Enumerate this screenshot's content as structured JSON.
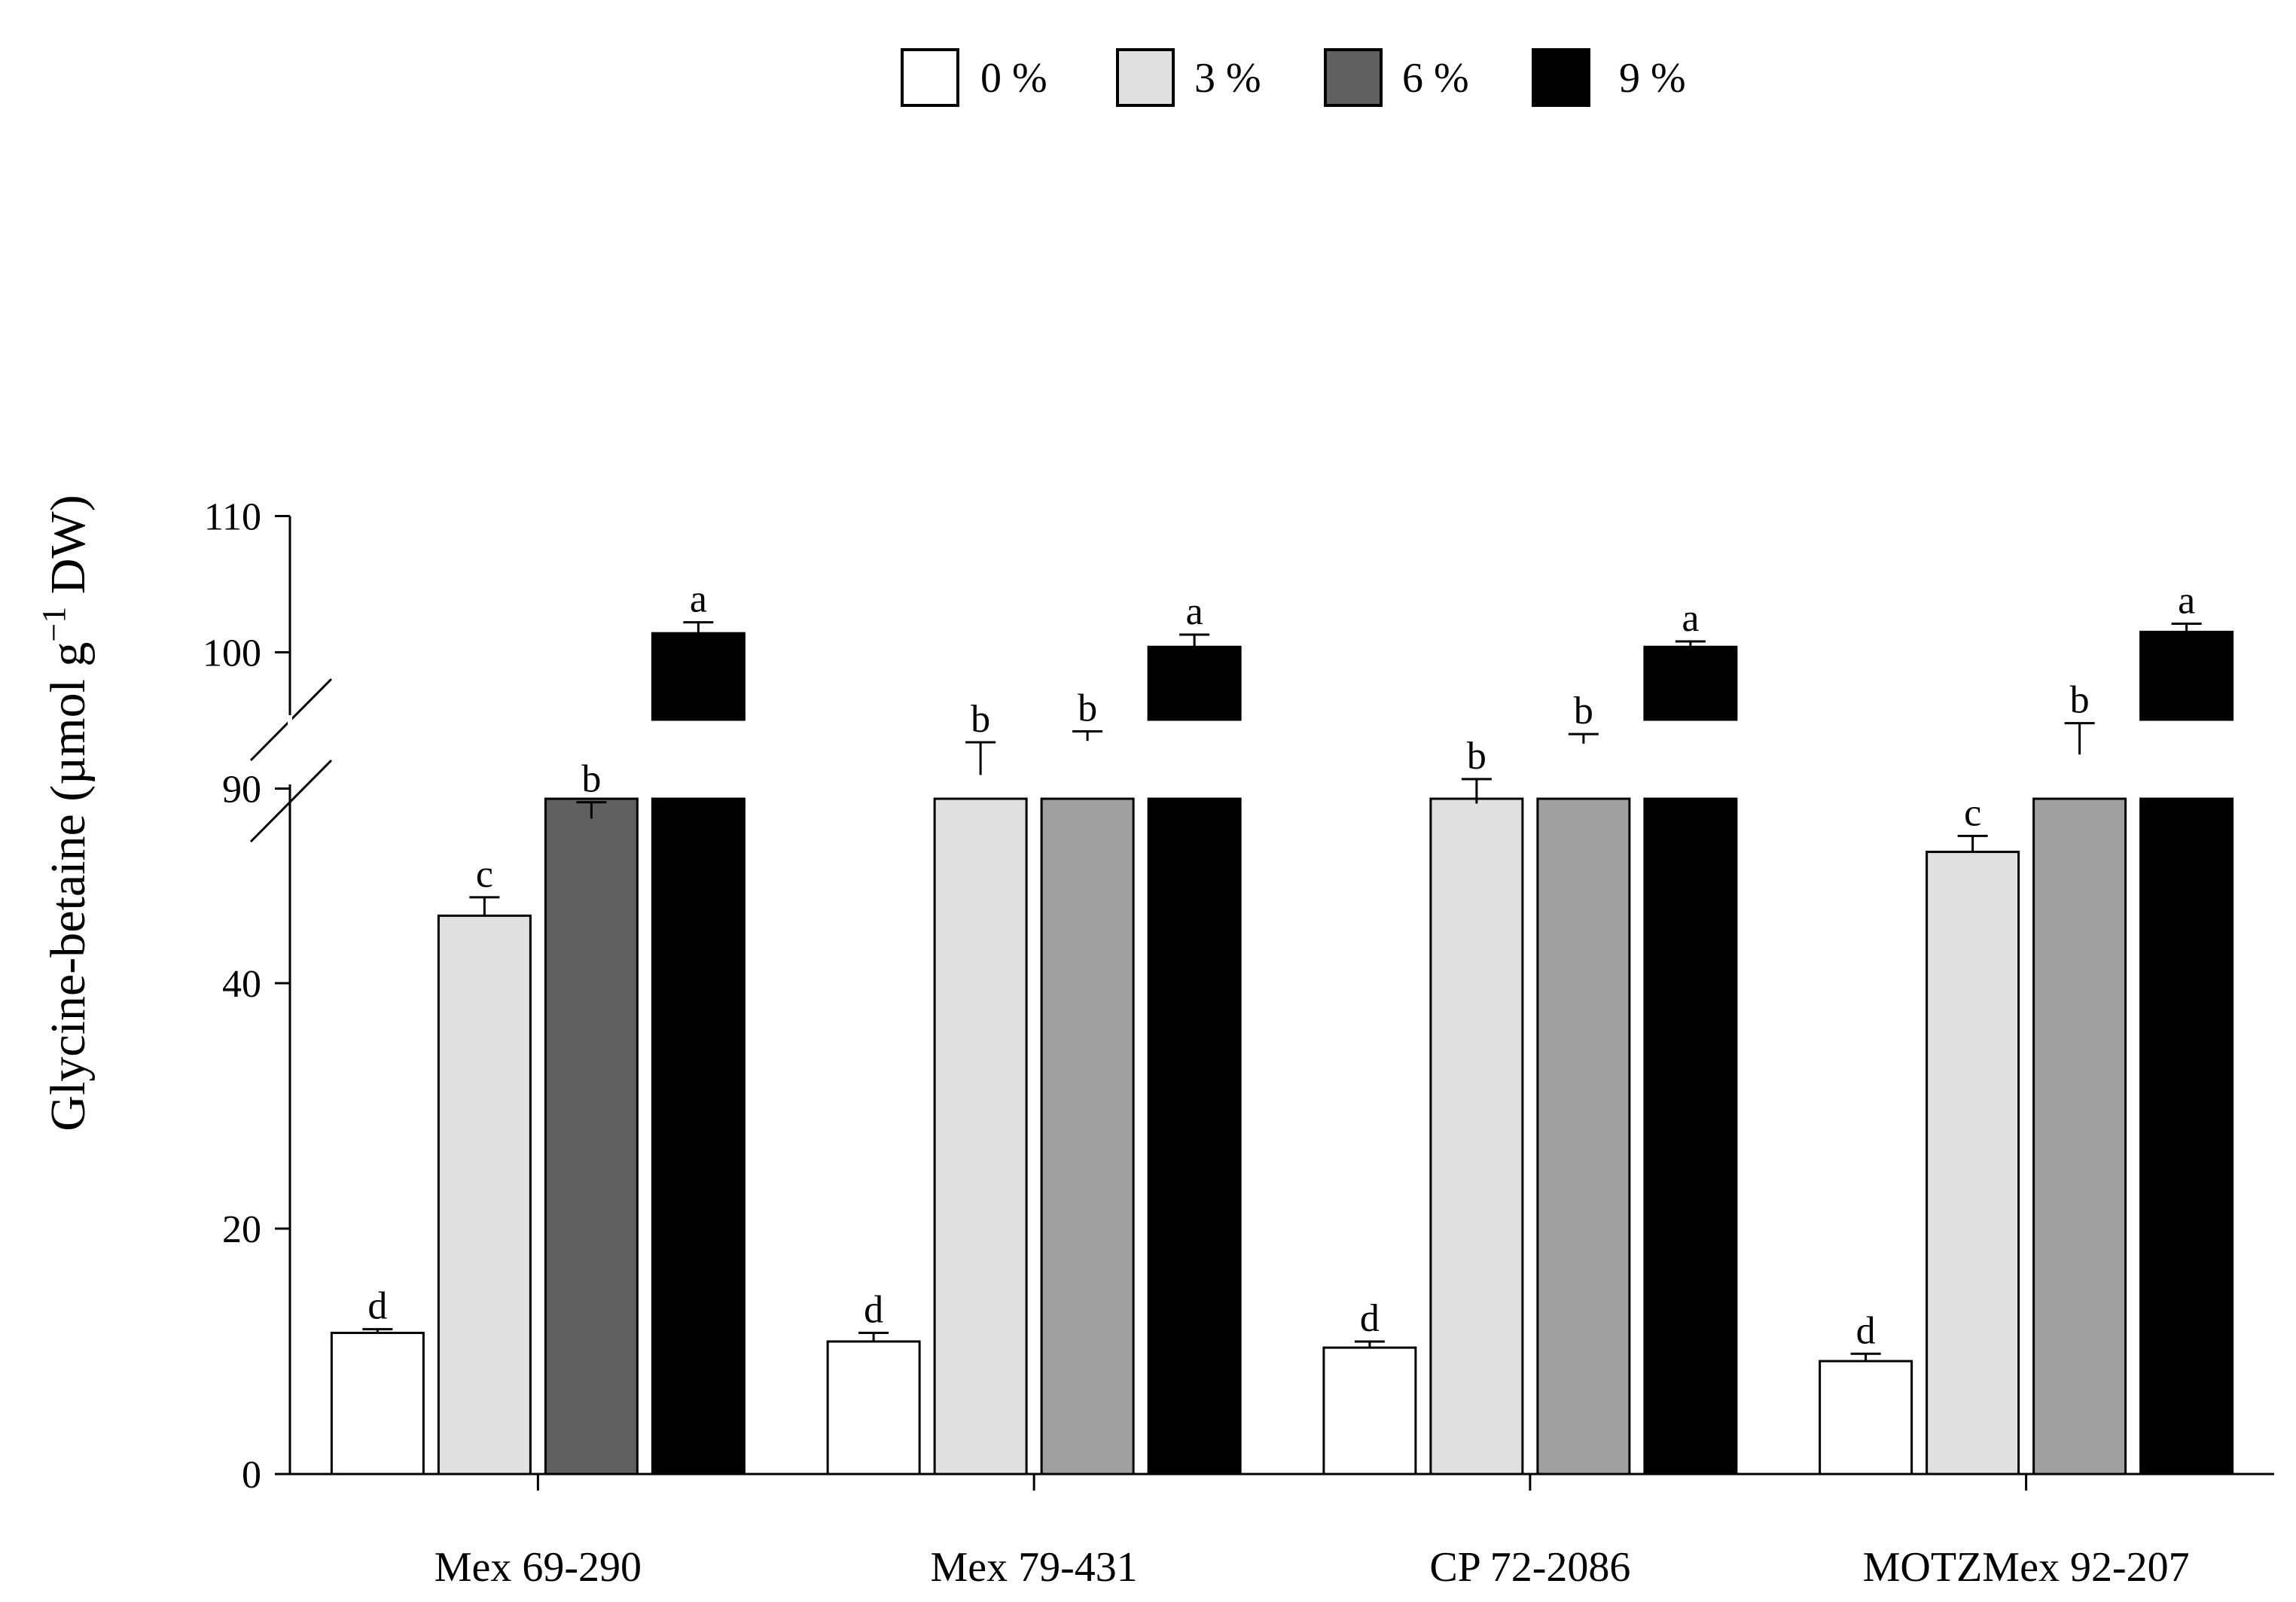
{
  "chart_data": {
    "type": "bar",
    "title": "",
    "xlabel": "",
    "ylabel": {
      "main": "Glycine-betaine (µmol g",
      "superscript": "−1",
      "tail": " DW)"
    },
    "axis_break": {
      "lower_segment": [
        0,
        55
      ],
      "upper_segment": [
        85,
        110
      ]
    },
    "y_ticks_lower": [
      "0",
      "20",
      "40"
    ],
    "y_ticks_upper": [
      "90",
      "100",
      "110"
    ],
    "categories": [
      "Mex 69-290",
      "Mex 79-431",
      "CP 72-2086",
      "MOTZMex 92-207"
    ],
    "series": [
      {
        "name": "0 %",
        "color": "#ffffff",
        "values": [
          11.5,
          10.8,
          10.3,
          9.2
        ],
        "errors": [
          0.3,
          0.7,
          0.5,
          0.6
        ],
        "letters": [
          "d",
          "d",
          "d",
          "d"
        ]
      },
      {
        "name": "3 %",
        "color": "#e0e0e0",
        "values": [
          45.5,
          91.0,
          88.9,
          50.7
        ],
        "errors": [
          1.5,
          2.4,
          1.8,
          1.3
        ],
        "letters": [
          "c",
          "b",
          "b",
          "c"
        ]
      },
      {
        "name": "6 %",
        "colors": [
          "#606060",
          "#a0a0a0",
          "#a0a0a0",
          "#a0a0a0"
        ],
        "values": [
          87.8,
          93.5,
          93.3,
          92.5
        ],
        "errors": [
          1.2,
          0.7,
          0.7,
          2.3
        ],
        "letters": [
          "b",
          "b",
          "b",
          "b"
        ]
      },
      {
        "name": "9 %",
        "color": "#000000",
        "values": [
          101.4,
          100.4,
          100.4,
          101.5
        ],
        "errors": [
          0.8,
          0.9,
          0.4,
          0.6
        ],
        "letters": [
          "a",
          "a",
          "a",
          "a"
        ]
      }
    ],
    "legend": {
      "position": "top",
      "entries": [
        {
          "label": "0 %",
          "color": "#ffffff"
        },
        {
          "label": "3 %",
          "color": "#e0e0e0"
        },
        {
          "label": "6 %",
          "color": "#606060"
        },
        {
          "label": "9 %",
          "color": "#000000"
        }
      ]
    }
  }
}
